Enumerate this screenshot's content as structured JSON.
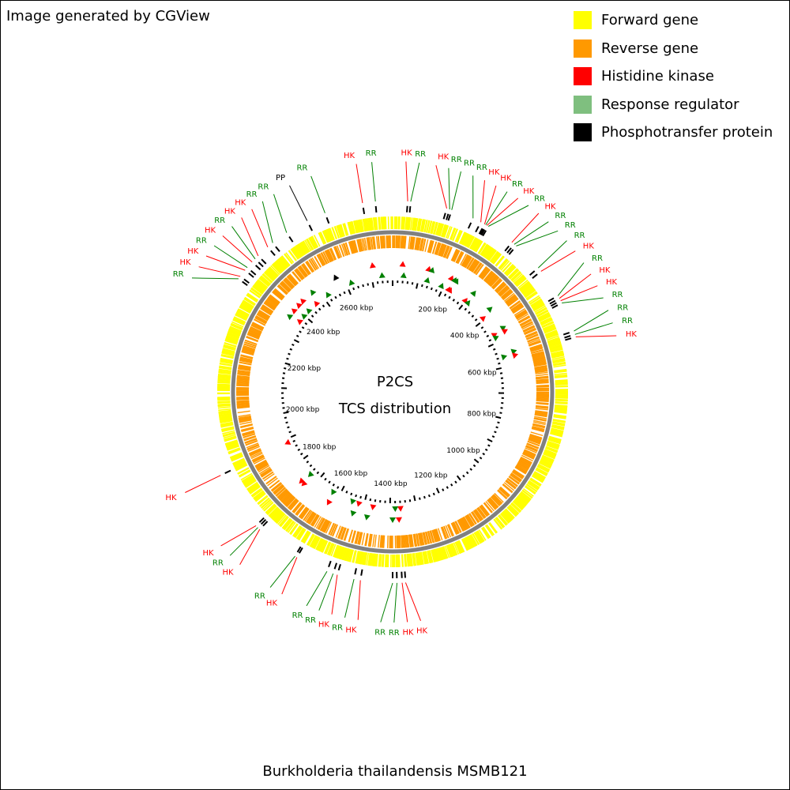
{
  "credit": "Image generated by CGView",
  "organism": "Burkholderia thailandensis MSMB121",
  "center": {
    "line1": "P2CS",
    "line2": "TCS distribution"
  },
  "colors": {
    "forward": "#ffff00",
    "reverse": "#ff9900",
    "hk": "#ff0000",
    "rr": "#008000",
    "pp": "#000000",
    "backbone": "#808080"
  },
  "legend": [
    {
      "label": "Forward gene",
      "color": "#ffff00"
    },
    {
      "label": "Reverse gene",
      "color": "#ff9900"
    },
    {
      "label": "Histidine kinase",
      "color": "#ff0000"
    },
    {
      "label": "Response regulator",
      "color": "#7fbf7f"
    },
    {
      "label": "Phosphotransfer protein",
      "color": "#000000"
    }
  ],
  "genome_kbp": 2780,
  "tick_labels": [
    "200 kbp",
    "400 kbp",
    "600 kbp",
    "800 kbp",
    "1000 kbp",
    "1200 kbp",
    "1400 kbp",
    "1600 kbp",
    "1800 kbp",
    "2000 kbp",
    "2200 kbp",
    "2400 kbp",
    "2600 kbp"
  ],
  "tick_values_kbp": [
    200,
    400,
    600,
    800,
    1000,
    1200,
    1400,
    1600,
    1800,
    2000,
    2200,
    2400,
    2600
  ],
  "features": [
    {
      "type": "HK",
      "label": "HK",
      "kbp": 35
    },
    {
      "type": "RR",
      "label": "RR",
      "kbp": 42
    },
    {
      "type": "HK",
      "label": "HK",
      "kbp": 127
    },
    {
      "type": "RR",
      "label": "RR",
      "kbp": 134
    },
    {
      "type": "RR",
      "label": "RR",
      "kbp": 139
    },
    {
      "type": "RR",
      "label": "RR",
      "kbp": 192
    },
    {
      "type": "HK",
      "label": "HK",
      "kbp": 212
    },
    {
      "type": "HK",
      "label": "HK",
      "kbp": 222
    },
    {
      "type": "RR",
      "label": "RR",
      "kbp": 225
    },
    {
      "type": "HK",
      "label": "HK",
      "kbp": 228
    },
    {
      "type": "RR",
      "label": "RR",
      "kbp": 232
    },
    {
      "type": "HK",
      "label": "HK",
      "kbp": 298
    },
    {
      "type": "RR",
      "label": "RR",
      "kbp": 305
    },
    {
      "type": "RR",
      "label": "RR",
      "kbp": 311
    },
    {
      "type": "RR",
      "label": "RR",
      "kbp": 383
    },
    {
      "type": "HK",
      "label": "HK",
      "kbp": 393
    },
    {
      "type": "RR",
      "label": "RR",
      "kbp": 462
    },
    {
      "type": "HK",
      "label": "HK",
      "kbp": 469
    },
    {
      "type": "HK",
      "label": "HK",
      "kbp": 475
    },
    {
      "type": "RR",
      "label": "RR",
      "kbp": 481
    },
    {
      "type": "RR",
      "label": "RR",
      "kbp": 552
    },
    {
      "type": "RR",
      "label": "RR",
      "kbp": 560
    },
    {
      "type": "HK",
      "label": "HK",
      "kbp": 566
    },
    {
      "type": "HK",
      "label": "HK",
      "kbp": 1360
    },
    {
      "type": "HK",
      "label": "HK",
      "kbp": 1368
    },
    {
      "type": "RR",
      "label": "RR",
      "kbp": 1380
    },
    {
      "type": "RR",
      "label": "RR",
      "kbp": 1390
    },
    {
      "type": "HK",
      "label": "HK",
      "kbp": 1465
    },
    {
      "type": "RR",
      "label": "RR",
      "kbp": 1480
    },
    {
      "type": "HK",
      "label": "HK",
      "kbp": 1520
    },
    {
      "type": "RR",
      "label": "RR",
      "kbp": 1530
    },
    {
      "type": "RR",
      "label": "RR",
      "kbp": 1545
    },
    {
      "type": "HK",
      "label": "HK",
      "kbp": 1622
    },
    {
      "type": "RR",
      "label": "RR",
      "kbp": 1627
    },
    {
      "type": "HK",
      "label": "HK",
      "kbp": 1730
    },
    {
      "type": "RR",
      "label": "RR",
      "kbp": 1736
    },
    {
      "type": "HK",
      "label": "HK",
      "kbp": 1742
    },
    {
      "type": "HK",
      "label": "HK",
      "kbp": 1885
    },
    {
      "type": "RR",
      "label": "RR",
      "kbp": 2365
    },
    {
      "type": "HK",
      "label": "HK",
      "kbp": 2372
    },
    {
      "type": "HK",
      "label": "HK",
      "kbp": 2390
    },
    {
      "type": "RR",
      "label": "RR",
      "kbp": 2398
    },
    {
      "type": "HK",
      "label": "HK",
      "kbp": 2415
    },
    {
      "type": "RR",
      "label": "RR",
      "kbp": 2425
    },
    {
      "type": "HK",
      "label": "HK",
      "kbp": 2435
    },
    {
      "type": "HK",
      "label": "HK",
      "kbp": 2465
    },
    {
      "type": "RR",
      "label": "RR",
      "kbp": 2480
    },
    {
      "type": "RR",
      "label": "RR",
      "kbp": 2520
    },
    {
      "type": "PP",
      "label": "PP",
      "kbp": 2575
    },
    {
      "type": "RR",
      "label": "RR",
      "kbp": 2620
    },
    {
      "type": "HK",
      "label": "HK",
      "kbp": 2710
    },
    {
      "type": "RR",
      "label": "RR",
      "kbp": 2740
    }
  ]
}
